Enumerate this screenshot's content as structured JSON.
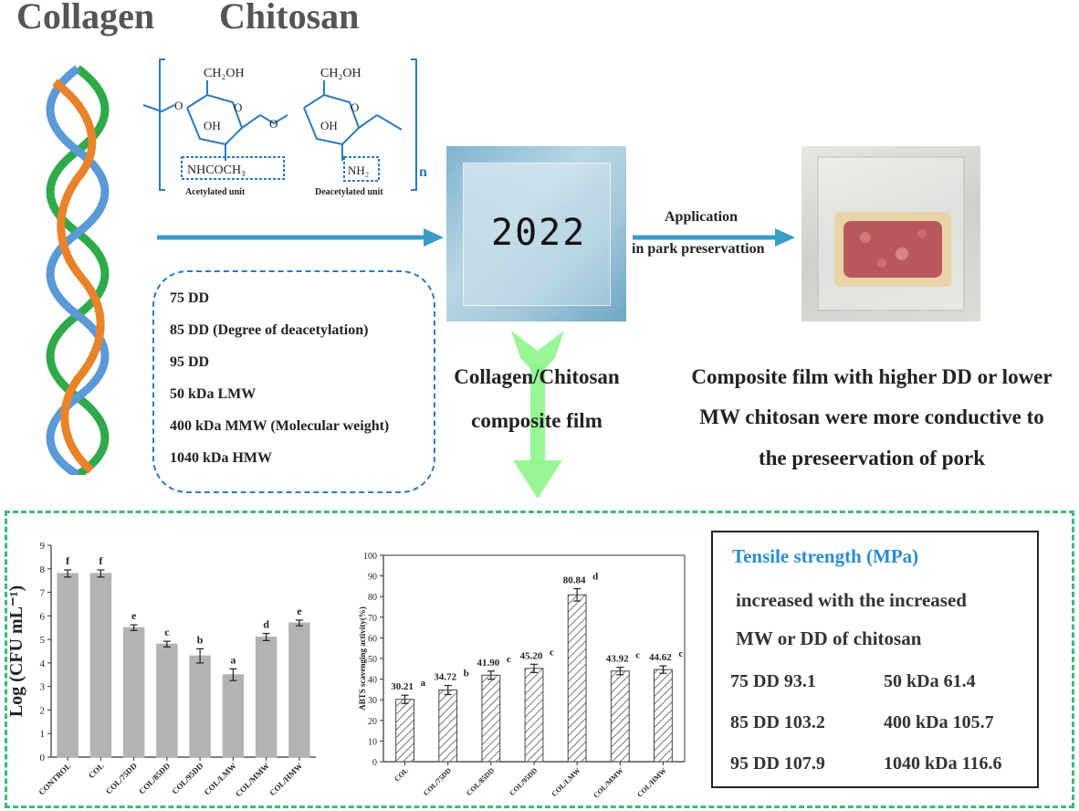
{
  "header": {
    "collagen_label": "Collagen",
    "chitosan_label": "Chitosan"
  },
  "structure": {
    "ch2oh_1": "CH₂OH",
    "ch2oh_2": "CH₂OH",
    "oh_1": "OH",
    "oh_2": "OH",
    "bridge_o": "O",
    "ring_o_1": "O",
    "ring_o_2": "O",
    "left_o": "O",
    "nhcoch3": "NHCOCH₃",
    "nh2": "NH₂",
    "acetylated_unit": "Acetylated unit",
    "deacetylated_unit": "Deacetylated unit",
    "repeat_n": "n"
  },
  "variables": {
    "items": [
      "75 DD",
      "85 DD (Degree of deacetylation)",
      "95 DD",
      "50 kDa LMW",
      "400 kDa MMW (Molecular weight)",
      "1040 kDa HMW"
    ]
  },
  "film": {
    "label": "2022",
    "caption_line1": "Collagen/Chitosan",
    "caption_line2": "composite film"
  },
  "application": {
    "line1": "Application",
    "line2": "in park preservattion"
  },
  "conclusion": {
    "line1": "Composite film with higher DD or lower",
    "line2": "MW chitosan were more conductive to",
    "line3": "the preseervation of pork"
  },
  "tensile": {
    "heading": "Tensile strength (MPa)",
    "line1": "increased with the increased",
    "line2": "MW or DD of chitosan",
    "rows": [
      {
        "left": "75 DD 93.1",
        "right": "50 kDa 61.4"
      },
      {
        "left": "85 DD 103.2",
        "right": "400 kDa 105.7"
      },
      {
        "left": "95 DD 107.9",
        "right": "1040 kDa 116.6"
      }
    ]
  },
  "colors": {
    "collagen_green": "#2eaa4a",
    "collagen_orange": "#e8832a",
    "collagen_blue": "#5a9ad6",
    "arrow_blue": "#3a9bc8",
    "arrow_green": "#8ef58c",
    "bottom_border": "#3dba79",
    "dashed_blue": "#2a7bbf",
    "heading_blue": "#2a8ccf",
    "bar_gray": "#b3b3b3"
  },
  "chart_data": [
    {
      "type": "bar",
      "categories": [
        "CONTROL",
        "COL",
        "COL/75DD",
        "COL/85DD",
        "COL/95DD",
        "COL/LMW",
        "COL/MMW",
        "COL/HMW"
      ],
      "values": [
        7.8,
        7.8,
        5.5,
        4.8,
        4.3,
        3.5,
        5.1,
        5.7
      ],
      "errors": [
        0.15,
        0.15,
        0.12,
        0.12,
        0.3,
        0.25,
        0.15,
        0.12
      ],
      "letters": [
        "f",
        "f",
        "e",
        "c",
        "b",
        "a",
        "d",
        "e"
      ],
      "ylabel": "Log (CFU mL⁻¹)",
      "ylim": [
        0,
        9
      ],
      "yticks": [
        "0",
        "1",
        "2",
        "3",
        "4",
        "5",
        "6",
        "7",
        "8",
        "9"
      ]
    },
    {
      "type": "bar",
      "categories": [
        "COL",
        "COL/75DD",
        "COL/85DD",
        "COL/95DD",
        "COL/LMW",
        "COL/MMW",
        "COL/HMW"
      ],
      "values": [
        30.21,
        34.72,
        41.9,
        45.2,
        80.84,
        43.92,
        44.62
      ],
      "errors": [
        2.0,
        2.2,
        2.0,
        2.0,
        3.0,
        1.8,
        1.8
      ],
      "value_labels": [
        "30.21",
        "34.72",
        "41.90",
        "45.20",
        "80.84",
        "43.92",
        "44.62"
      ],
      "letters": [
        "a",
        "b",
        "c",
        "c",
        "d",
        "c",
        "c"
      ],
      "ylabel": "ABTS scavenging activity(%)",
      "ylim": [
        0,
        100
      ],
      "yticks": [
        "0",
        "10",
        "20",
        "30",
        "40",
        "50",
        "60",
        "70",
        "80",
        "90",
        "100"
      ]
    }
  ]
}
